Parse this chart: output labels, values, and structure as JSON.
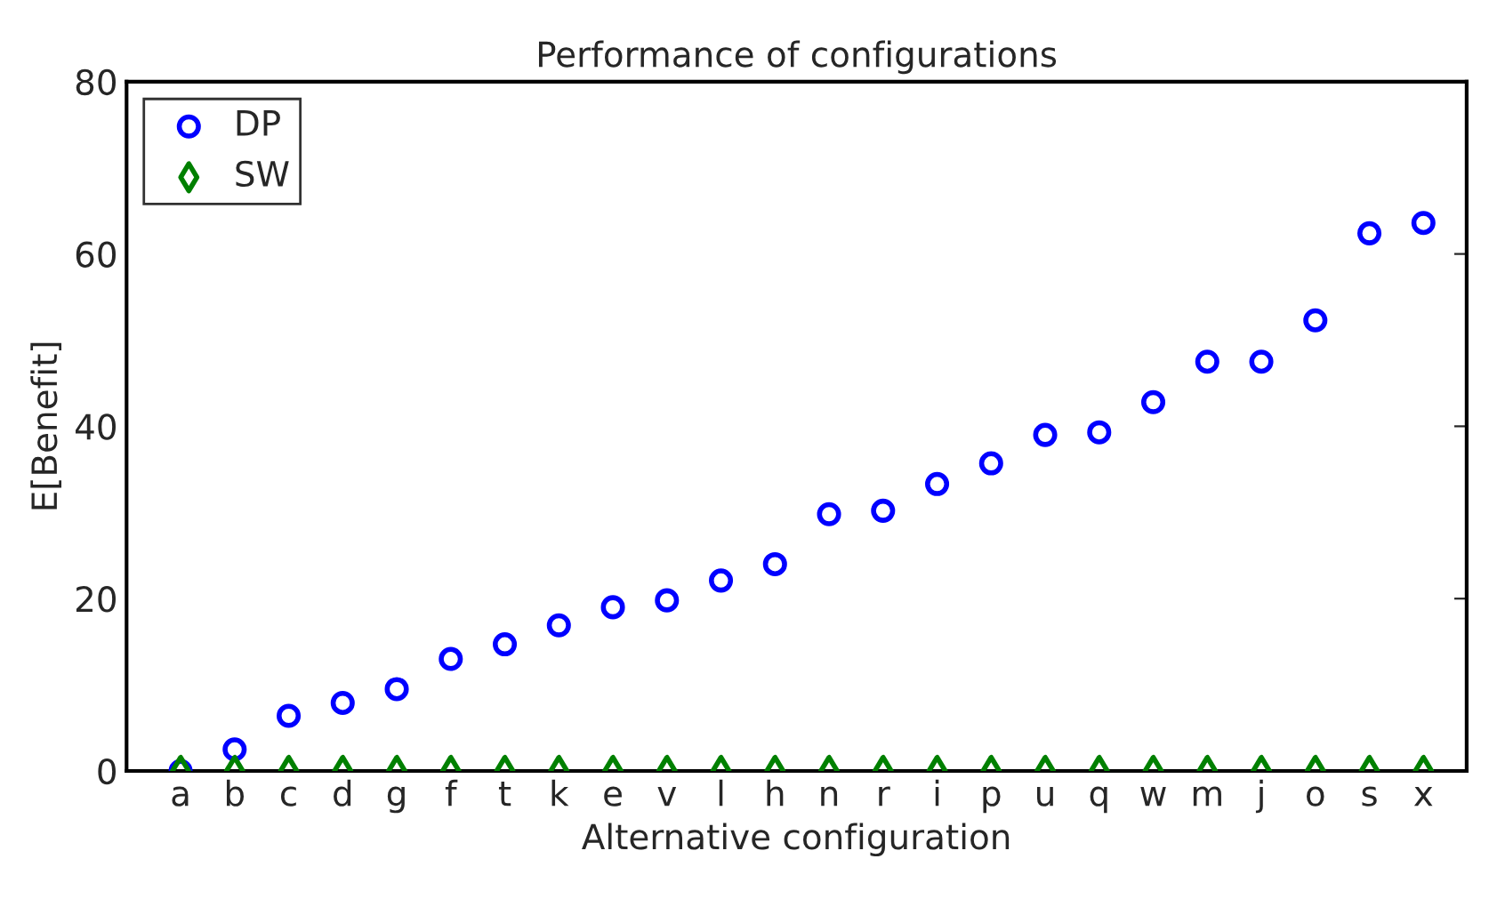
{
  "chart_data": {
    "type": "scatter",
    "title": "Performance of configurations",
    "xlabel": "Alternative configuration",
    "ylabel": "E[Benefit]",
    "categories": [
      "a",
      "b",
      "c",
      "d",
      "g",
      "f",
      "t",
      "k",
      "e",
      "v",
      "l",
      "h",
      "n",
      "r",
      "i",
      "p",
      "u",
      "q",
      "w",
      "m",
      "j",
      "o",
      "s",
      "x"
    ],
    "series": [
      {
        "name": "DP",
        "color": "#0000ff",
        "marker": "circle",
        "values": [
          0,
          2.5,
          6.4,
          7.9,
          9.5,
          13.0,
          14.7,
          16.9,
          19.0,
          19.8,
          22.1,
          24.0,
          29.8,
          30.2,
          33.3,
          35.7,
          39.0,
          39.3,
          42.8,
          47.5,
          47.5,
          52.3,
          62.4,
          63.6
        ]
      },
      {
        "name": "SW",
        "color": "#008000",
        "marker": "diamond",
        "values": [
          0,
          0,
          0,
          0,
          0,
          0,
          0,
          0,
          0,
          0,
          0,
          0,
          0,
          0,
          0,
          0,
          0,
          0,
          0,
          0,
          0,
          0,
          0,
          0
        ]
      }
    ],
    "ylim": [
      0,
      80
    ],
    "yticks": [
      0,
      20,
      40,
      60,
      80
    ],
    "grid": false,
    "legend": "top left"
  }
}
